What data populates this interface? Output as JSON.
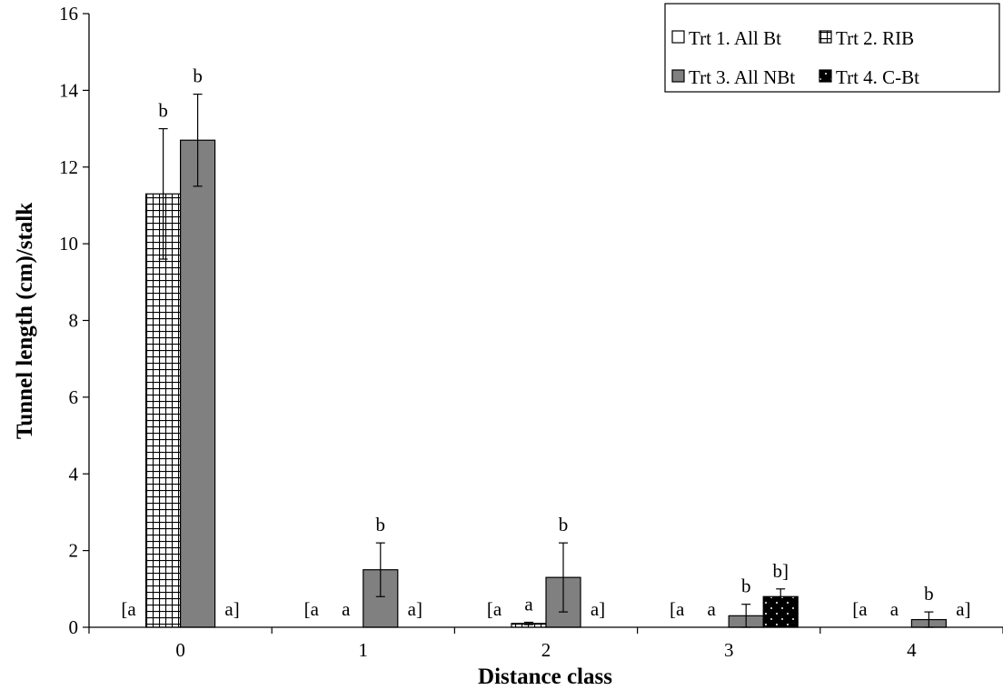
{
  "chart_data": {
    "type": "bar",
    "xlabel": "Distance class",
    "ylabel": "Tunnel length (cm)/stalk",
    "ylim": [
      0,
      16
    ],
    "ytick_step": 2,
    "categories": [
      "0",
      "1",
      "2",
      "3",
      "4"
    ],
    "legend_position": "top-right",
    "series": [
      {
        "name": "Trt 1. All Bt",
        "values": [
          0,
          0,
          0,
          0,
          0
        ],
        "errors": [
          0,
          0,
          0,
          0,
          0
        ],
        "fill": "#ffffff",
        "pattern": "none"
      },
      {
        "name": "Trt 2. RIB",
        "values": [
          11.3,
          0,
          0.1,
          0,
          0
        ],
        "errors": [
          1.7,
          0,
          0.03,
          0,
          0
        ],
        "fill": "#ffffff",
        "pattern": "grid"
      },
      {
        "name": "Trt 3. All NBt",
        "values": [
          12.7,
          1.5,
          1.3,
          0.3,
          0.2
        ],
        "errors": [
          1.2,
          0.7,
          0.9,
          0.3,
          0.2
        ],
        "fill": "#808080",
        "pattern": "none"
      },
      {
        "name": "Trt 4. C-Bt",
        "values": [
          0,
          0,
          0,
          0.8,
          0
        ],
        "errors": [
          0,
          0,
          0,
          0.2,
          0
        ],
        "fill": "#000000",
        "pattern": "dots"
      }
    ],
    "annotations": [
      [
        [
          "[a",
          "0"
        ],
        [
          "b",
          "1"
        ],
        [
          "b",
          "2"
        ],
        [
          "a]",
          "3"
        ]
      ],
      [
        [
          "[a",
          "0"
        ],
        [
          "a",
          "1"
        ],
        [
          "b",
          "2"
        ],
        [
          "a]",
          "3"
        ]
      ],
      [
        [
          "[a",
          "0"
        ],
        [
          "a",
          "1"
        ],
        [
          "b",
          "2"
        ],
        [
          "a]",
          "3"
        ]
      ],
      [
        [
          "[a",
          "0"
        ],
        [
          "a",
          "1"
        ],
        [
          "b",
          "2"
        ],
        [
          "b]",
          "3"
        ]
      ],
      [
        [
          "[a",
          "0"
        ],
        [
          "a",
          "1"
        ],
        [
          "b",
          "2"
        ],
        [
          "a]",
          "3"
        ]
      ]
    ]
  }
}
